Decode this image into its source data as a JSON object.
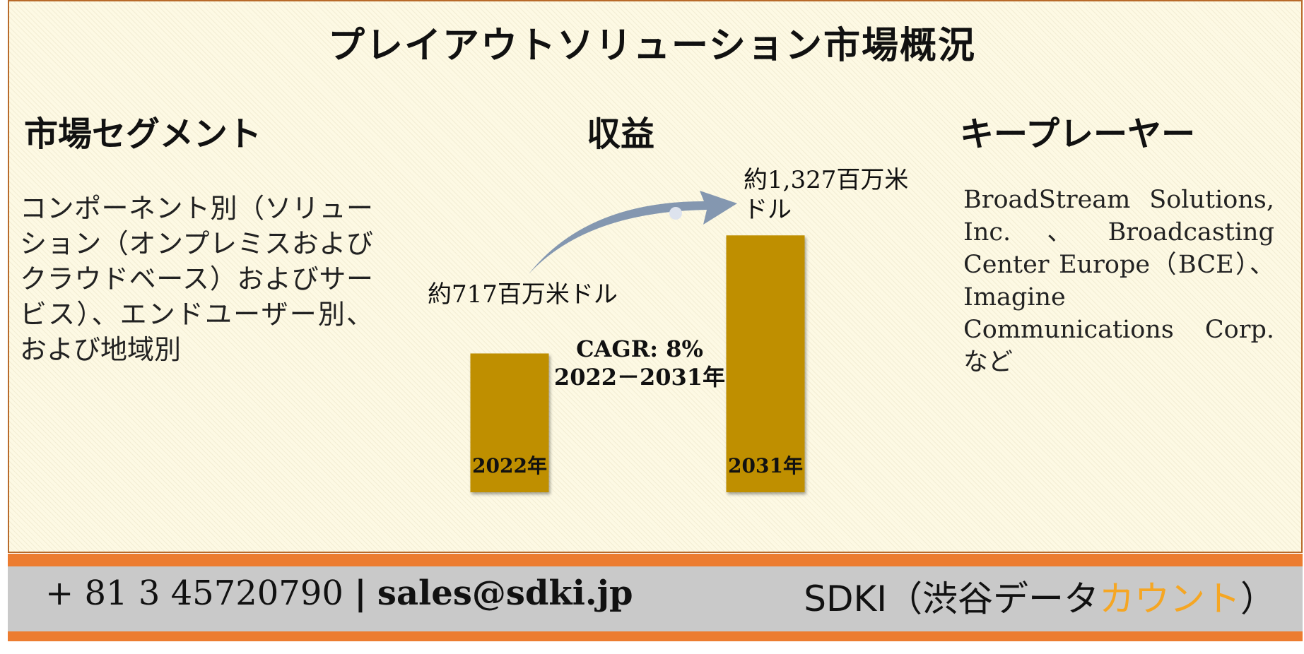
{
  "page": {
    "title": "プレイアウトソリューション市場概況"
  },
  "segments": {
    "heading": "市場セグメント",
    "text": "コンポーネント別（ソリューション（オンプレミスおよびクラウドベース）およびサービス）、エンドユーザー別、および地域別"
  },
  "revenue": {
    "heading": "収益"
  },
  "players": {
    "heading": "キープレーヤー",
    "text": "BroadStream Solutions, Inc.、Broadcasting Center Europe（BCE）、Imagine Communications Corp.など"
  },
  "footer": {
    "phone": "+ 81 3 45720790",
    "separator": "|",
    "email": "sales@sdki.jp",
    "brand_prefix": "SDKI（渋谷データ",
    "brand_accent": "カウント",
    "brand_suffix": "）"
  },
  "colors": {
    "bar": "#bf8f00",
    "arrow": "#8497b0",
    "footer_band": "#ec7c30",
    "footer_grey": "#c9c9c9",
    "brand_accent": "#f5a623"
  },
  "chart_data": {
    "type": "bar",
    "categories": [
      "2022年",
      "2031年"
    ],
    "values": [
      717,
      1327
    ],
    "unit": "百万米ドル",
    "value_labels": [
      "約717百万米ドル",
      "約1,327百万米ドル"
    ],
    "annotation": [
      "CAGR: 8%",
      "2022－2031年"
    ],
    "title": "",
    "xlabel": "",
    "ylabel": "",
    "grid": false,
    "legend": "none"
  }
}
